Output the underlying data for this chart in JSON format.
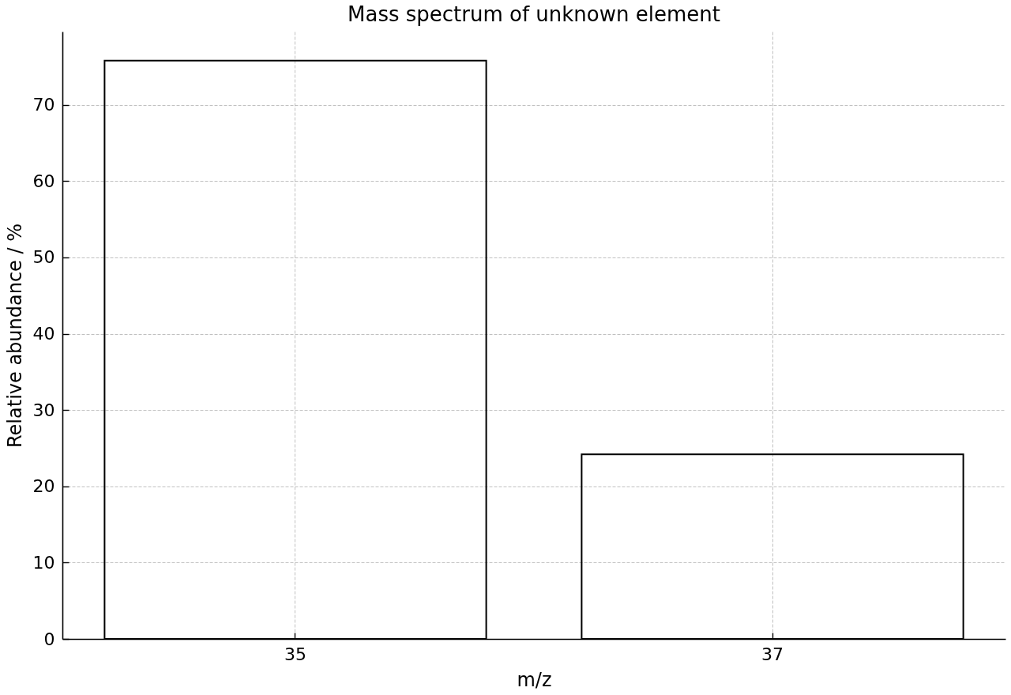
{
  "chart_data": {
    "type": "bar",
    "title": "Mass spectrum of unknown element",
    "xlabel": "m/z",
    "ylabel": "Relative abundance / %",
    "categories": [
      "35",
      "37"
    ],
    "values": [
      75.8,
      24.2
    ],
    "color": "#000000",
    "ylim": [
      0,
      79.6
    ],
    "yticks": [
      0,
      10,
      20,
      30,
      40,
      50,
      60,
      70
    ],
    "grid": true
  }
}
